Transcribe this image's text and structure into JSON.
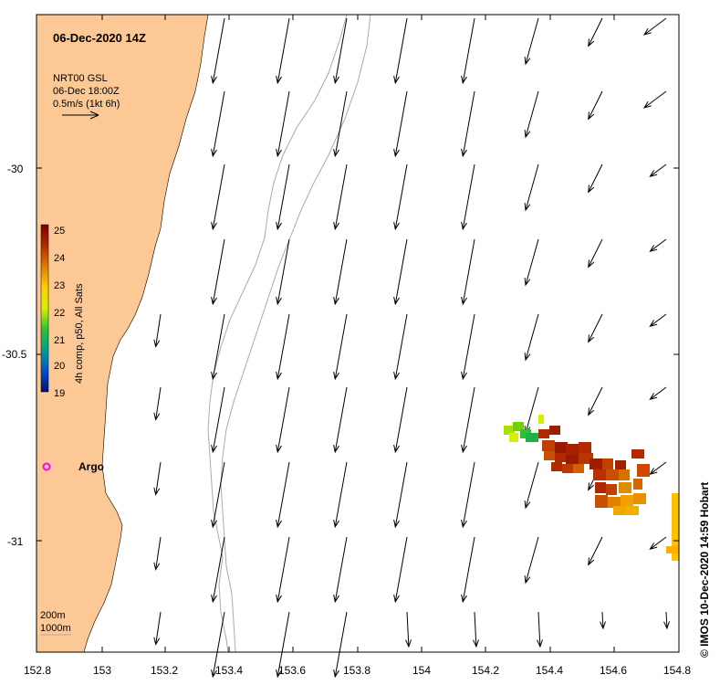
{
  "title": "06-Dec-2020 14Z",
  "product": {
    "name": "NRT00 GSL",
    "time": "06-Dec 18:00Z",
    "scale_note": "0.5m/s (1kt 6h)"
  },
  "colorbar": {
    "label": "4h comp, p50, All Sats",
    "ticks": [
      "25",
      "24",
      "23",
      "22",
      "21",
      "20",
      "19"
    ],
    "min": 19,
    "max": 25,
    "colors": [
      "#7a0000",
      "#b22a00",
      "#e07a00",
      "#ffd000",
      "#d8f000",
      "#30c030",
      "#00a090",
      "#0050d0",
      "#001070"
    ]
  },
  "axes": {
    "x_ticks": [
      "152.8",
      "153",
      "153.2",
      "153.4",
      "153.6",
      "153.8",
      "154",
      "154.2",
      "154.4",
      "154.6",
      "154.8"
    ],
    "y_ticks": [
      "-30",
      "-30.5",
      "-31"
    ],
    "lon_range": [
      152.8,
      154.8
    ],
    "lat_range": [
      -31.3,
      -29.58
    ]
  },
  "argo": {
    "label": "Argo",
    "lon": 152.83,
    "lat": -30.8,
    "color": "#ff00ff"
  },
  "isobaths": {
    "shallow": "200m",
    "deep": "1000m"
  },
  "credit": "© IMOS 10-Dec-2020 14:59 Hobart",
  "colors": {
    "land": "#fcc996",
    "ocean": "#ffffff",
    "isobath": "#aaaaaa",
    "arrow": "#000000"
  }
}
